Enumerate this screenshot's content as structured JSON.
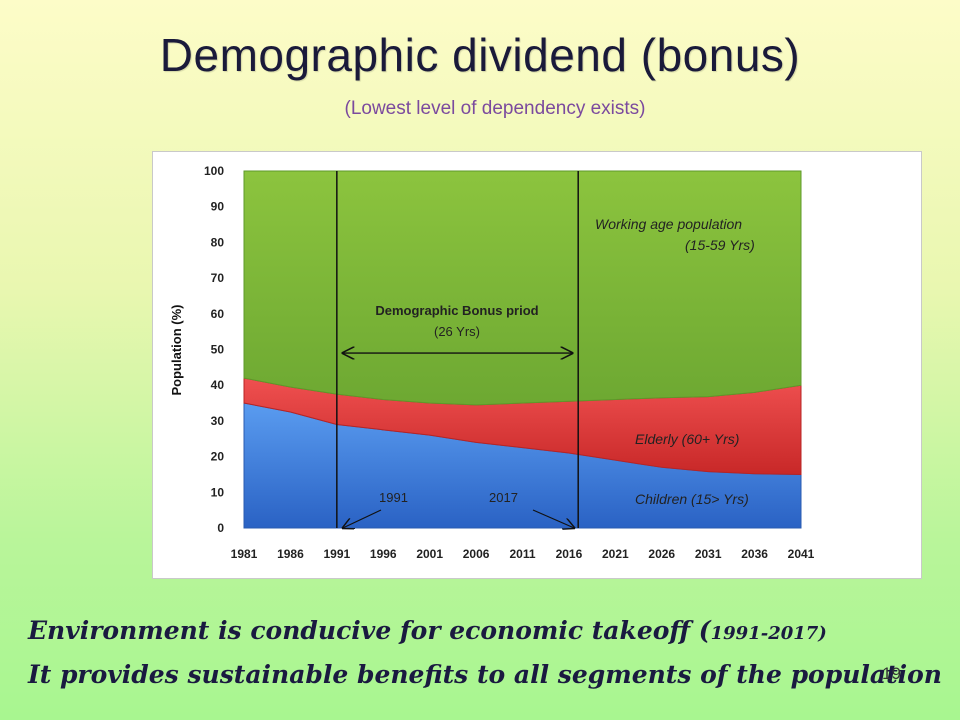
{
  "slide": {
    "title": "Demographic dividend (bonus)",
    "subtitle": "(Lowest level of dependency exists)",
    "footer_line1_main": "Environment is conducive for economic takeoff (",
    "footer_line1_range": "1991-2017)",
    "footer_line2": "It provides sustainable benefits to all segments of the population",
    "page_number": "19"
  },
  "chart_data": {
    "type": "area",
    "stacked": true,
    "ylabel": "Population (%)",
    "xlabel": "",
    "ylim": [
      0,
      100
    ],
    "yticks": [
      0,
      10,
      20,
      30,
      40,
      50,
      60,
      70,
      80,
      90,
      100
    ],
    "x": [
      1981,
      1986,
      1991,
      1996,
      2001,
      2006,
      2011,
      2016,
      2021,
      2026,
      2031,
      2036,
      2041
    ],
    "series": [
      {
        "name": "Children (15> Yrs)",
        "color": "#3a7fdc",
        "values": [
          35,
          32.5,
          29,
          27.5,
          26,
          24,
          22.5,
          21,
          19,
          17,
          15.8,
          15.2,
          15
        ]
      },
      {
        "name": "Elderly (60+ Yrs)",
        "color": "#e03a3a",
        "values": [
          7,
          7,
          8.5,
          8.5,
          9,
          10.5,
          12.5,
          14.5,
          17,
          19.5,
          21,
          22.8,
          25
        ]
      },
      {
        "name": "Working age population (15-59 Yrs)",
        "color": "#7cb53a",
        "values": [
          58,
          60.5,
          62.5,
          64,
          65,
          65.5,
          65,
          64.5,
          64,
          63.5,
          63.2,
          62,
          60
        ]
      }
    ],
    "annotations": {
      "working_line1": "Working age population",
      "working_line2": "(15-59 Yrs)",
      "elderly": "Elderly  (60+ Yrs)",
      "children": "Children (15> Yrs)",
      "bonus_line1": "Demographic Bonus priod",
      "bonus_line2": "(26 Yrs)",
      "marker_start": "1991",
      "marker_end": "2017"
    },
    "vertical_markers": [
      1991,
      2017
    ]
  }
}
